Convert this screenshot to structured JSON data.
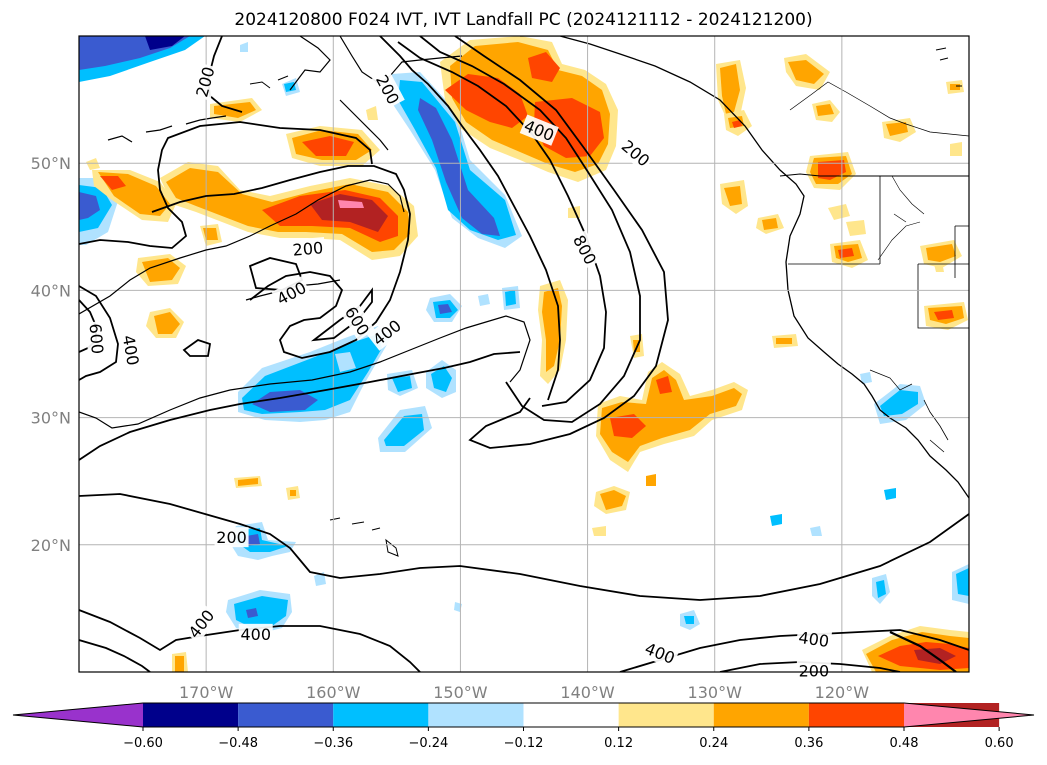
{
  "title": "2024120800 F024 IVT, IVT Landfall PC (2024121112 - 2024121200)",
  "chart_data": {
    "type": "map",
    "projection": "plate-carree",
    "lon_range": [
      -180,
      -110
    ],
    "lat_range": [
      10,
      60
    ],
    "lat_ticks": [
      {
        "value": 50,
        "label": "50°N"
      },
      {
        "value": 40,
        "label": "40°N"
      },
      {
        "value": 30,
        "label": "30°N"
      },
      {
        "value": 20,
        "label": "20°N"
      }
    ],
    "lon_ticks": [
      {
        "value": -170,
        "label": "170°W"
      },
      {
        "value": -160,
        "label": "160°W"
      },
      {
        "value": -150,
        "label": "150°W"
      },
      {
        "value": -140,
        "label": "140°W"
      },
      {
        "value": -130,
        "label": "130°W"
      },
      {
        "value": -120,
        "label": "120°W"
      }
    ],
    "grid": true,
    "ivt_contour_levels": [
      200,
      400,
      600,
      800
    ],
    "contour_labels": [
      {
        "text": "200",
        "lon": -170.1,
        "lat": 56.4,
        "rot": -75
      },
      {
        "text": "200",
        "lon": -155.7,
        "lat": 55.8,
        "rot": 62
      },
      {
        "text": "400",
        "lon": -143.8,
        "lat": 52.6,
        "rot": 22
      },
      {
        "text": "200",
        "lon": -136.2,
        "lat": 50.8,
        "rot": 40
      },
      {
        "text": "800",
        "lon": -140.2,
        "lat": 43.2,
        "rot": 62
      },
      {
        "text": "200",
        "lon": -162.0,
        "lat": 43.3,
        "rot": -5
      },
      {
        "text": "400",
        "lon": -163.3,
        "lat": 39.8,
        "rot": -28
      },
      {
        "text": "600",
        "lon": -158.1,
        "lat": 37.6,
        "rot": 58
      },
      {
        "text": "400",
        "lon": -155.8,
        "lat": 36.7,
        "rot": -38
      },
      {
        "text": "600",
        "lon": -178.6,
        "lat": 36.2,
        "rot": 85
      },
      {
        "text": "400",
        "lon": -175.9,
        "lat": 35.3,
        "rot": 80
      },
      {
        "text": "200",
        "lon": -168.0,
        "lat": 20.6,
        "rot": 0
      },
      {
        "text": "400",
        "lon": -170.4,
        "lat": 13.8,
        "rot": -52
      },
      {
        "text": "400",
        "lon": -166.1,
        "lat": 13.0,
        "rot": 0
      },
      {
        "text": "400",
        "lon": -134.3,
        "lat": 11.5,
        "rot": 22
      },
      {
        "text": "400",
        "lon": -122.2,
        "lat": 12.6,
        "rot": 8
      },
      {
        "text": "200",
        "lon": -122.2,
        "lat": 10.1,
        "rot": 0
      }
    ],
    "colorbar": {
      "ticks": [
        "−0.60",
        "−0.48",
        "−0.36",
        "−0.24",
        "−0.12",
        "0.12",
        "0.24",
        "0.36",
        "0.48",
        "0.60"
      ],
      "colors": [
        "#9932cc",
        "#00008b",
        "#3a5bd0",
        "#00bfff",
        "#b0e2ff",
        "#ffffff",
        "#ffe68c",
        "#ffa500",
        "#ff4500",
        "#b22222",
        "#ff86ae"
      ],
      "extend": "both"
    }
  }
}
